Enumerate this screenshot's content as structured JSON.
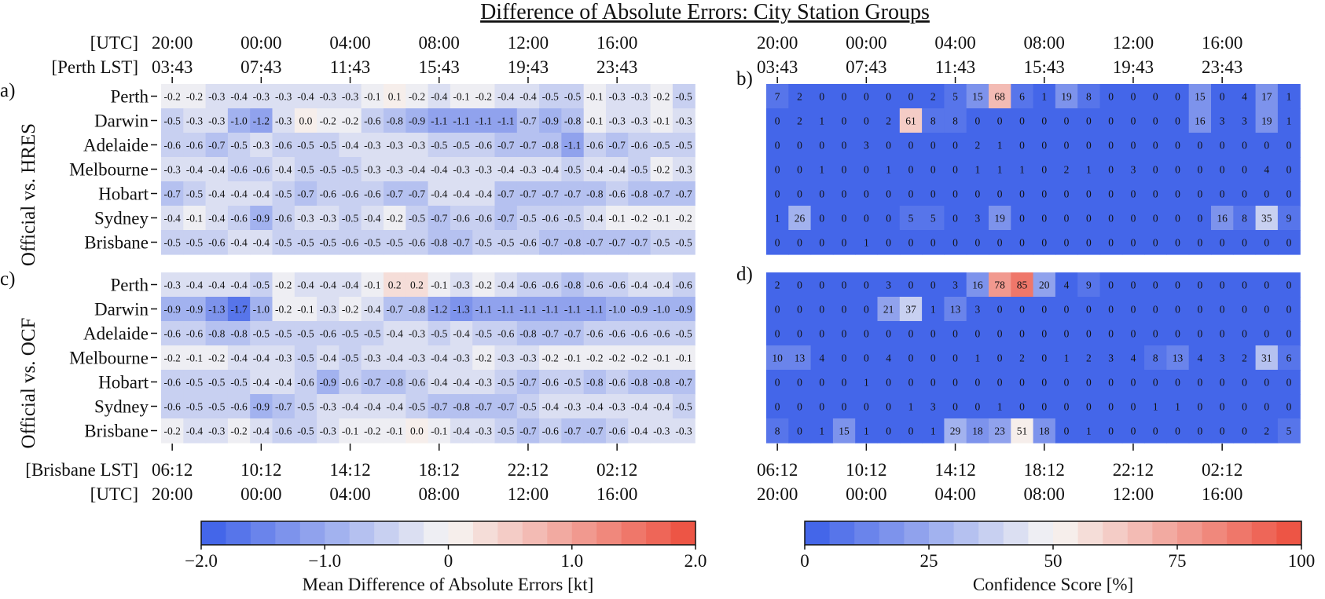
{
  "title": "Difference of Absolute Errors: City Station Groups",
  "top_axis": {
    "label_utc": "[UTC]",
    "label_lst": "[Perth LST]",
    "utc": [
      "20:00",
      "00:00",
      "04:00",
      "08:00",
      "12:00",
      "16:00"
    ],
    "lst": [
      "03:43",
      "07:43",
      "11:43",
      "15:43",
      "19:43",
      "23:43"
    ]
  },
  "bottom_axis": {
    "label_lst": "[Brisbane LST]",
    "label_utc": "[UTC]",
    "lst": [
      "06:12",
      "10:12",
      "14:12",
      "18:12",
      "22:12",
      "02:12"
    ],
    "utc": [
      "20:00",
      "00:00",
      "04:00",
      "08:00",
      "12:00",
      "16:00"
    ]
  },
  "row_group_labels": [
    "Official vs. HRES",
    "Official vs. OCF"
  ],
  "panel_labels": [
    "a)",
    "b)",
    "c)",
    "d)"
  ],
  "colorbars": [
    {
      "label": "Mean Difference of Absolute Errors [kt]",
      "ticks": [
        "−2.0",
        "−1.0",
        "0",
        "1.0",
        "2.0"
      ],
      "min": -2,
      "max": 2,
      "levels": 20
    },
    {
      "label": "Confidence Score [%]",
      "ticks": [
        "0",
        "25",
        "50",
        "75",
        "100"
      ],
      "min": 0,
      "max": 100,
      "levels": 20
    }
  ],
  "colors": {
    "low": "#3b5ee8",
    "mid": "#f7f6f4",
    "high": "#ec4d3c"
  },
  "chart_data": [
    {
      "type": "heatmap",
      "panel": "a)",
      "group": "Official vs. HRES",
      "rows": [
        "Perth",
        "Darwin",
        "Adelaide",
        "Melbourne",
        "Hobart",
        "Sydney",
        "Brisbane"
      ],
      "values": [
        [
          "-0.2",
          "-0.2",
          "-0.3",
          "-0.4",
          "-0.3",
          "-0.3",
          "-0.4",
          "-0.3",
          "-0.3",
          "-0.1",
          "0.1",
          "-0.2",
          "-0.4",
          "-0.1",
          "-0.2",
          "-0.4",
          "-0.4",
          "-0.5",
          "-0.5",
          "-0.1",
          "-0.3",
          "-0.3",
          "-0.2",
          "-0.5"
        ],
        [
          "-0.5",
          "-0.3",
          "-0.3",
          "-1.0",
          "-1.2",
          "-0.3",
          "0.0",
          "-0.2",
          "-0.2",
          "-0.6",
          "-0.8",
          "-0.9",
          "-1.1",
          "-1.1",
          "-1.1",
          "-1.1",
          "-0.7",
          "-0.9",
          "-0.8",
          "-0.1",
          "-0.3",
          "-0.3",
          "-0.1",
          "-0.3"
        ],
        [
          "-0.6",
          "-0.6",
          "-0.7",
          "-0.5",
          "-0.3",
          "-0.6",
          "-0.5",
          "-0.5",
          "-0.4",
          "-0.3",
          "-0.3",
          "-0.3",
          "-0.5",
          "-0.5",
          "-0.6",
          "-0.7",
          "-0.7",
          "-0.8",
          "-1.1",
          "-0.6",
          "-0.7",
          "-0.6",
          "-0.5",
          "-0.5"
        ],
        [
          "-0.3",
          "-0.4",
          "-0.4",
          "-0.6",
          "-0.6",
          "-0.4",
          "-0.5",
          "-0.5",
          "-0.5",
          "-0.3",
          "-0.3",
          "-0.4",
          "-0.4",
          "-0.3",
          "-0.3",
          "-0.4",
          "-0.3",
          "-0.4",
          "-0.5",
          "-0.4",
          "-0.4",
          "-0.5",
          "-0.2",
          "-0.3"
        ],
        [
          "-0.7",
          "-0.5",
          "-0.4",
          "-0.4",
          "-0.4",
          "-0.5",
          "-0.7",
          "-0.6",
          "-0.6",
          "-0.6",
          "-0.7",
          "-0.7",
          "-0.4",
          "-0.4",
          "-0.4",
          "-0.7",
          "-0.7",
          "-0.7",
          "-0.7",
          "-0.8",
          "-0.6",
          "-0.8",
          "-0.7",
          "-0.7"
        ],
        [
          "-0.4",
          "-0.1",
          "-0.4",
          "-0.6",
          "-0.9",
          "-0.6",
          "-0.3",
          "-0.3",
          "-0.5",
          "-0.4",
          "-0.2",
          "-0.5",
          "-0.7",
          "-0.6",
          "-0.6",
          "-0.7",
          "-0.5",
          "-0.6",
          "-0.5",
          "-0.4",
          "-0.1",
          "-0.2",
          "-0.1",
          "-0.2"
        ],
        [
          "-0.5",
          "-0.5",
          "-0.6",
          "-0.4",
          "-0.4",
          "-0.5",
          "-0.5",
          "-0.5",
          "-0.6",
          "-0.5",
          "-0.5",
          "-0.6",
          "-0.8",
          "-0.7",
          "-0.5",
          "-0.5",
          "-0.6",
          "-0.7",
          "-0.8",
          "-0.7",
          "-0.7",
          "-0.7",
          "-0.5",
          "-0.5"
        ]
      ]
    },
    {
      "type": "heatmap",
      "panel": "b)",
      "group": "Official vs. HRES",
      "rows": [
        "Perth",
        "Darwin",
        "Adelaide",
        "Melbourne",
        "Hobart",
        "Sydney",
        "Brisbane"
      ],
      "values": [
        [
          "7",
          "2",
          "0",
          "0",
          "0",
          "0",
          "0",
          "2",
          "5",
          "15",
          "68",
          "6",
          "1",
          "19",
          "8",
          "0",
          "0",
          "0",
          "0",
          "15",
          "0",
          "4",
          "17",
          "1"
        ],
        [
          "0",
          "2",
          "1",
          "0",
          "0",
          "2",
          "61",
          "8",
          "8",
          "0",
          "0",
          "0",
          "0",
          "0",
          "0",
          "0",
          "0",
          "0",
          "0",
          "16",
          "3",
          "3",
          "19",
          "1"
        ],
        [
          "0",
          "0",
          "0",
          "0",
          "3",
          "0",
          "0",
          "0",
          "0",
          "2",
          "1",
          "0",
          "0",
          "0",
          "0",
          "0",
          "0",
          "0",
          "0",
          "0",
          "0",
          "0",
          "0",
          "0"
        ],
        [
          "0",
          "0",
          "1",
          "0",
          "0",
          "1",
          "0",
          "0",
          "0",
          "1",
          "1",
          "1",
          "0",
          "2",
          "1",
          "0",
          "3",
          "0",
          "0",
          "0",
          "0",
          "0",
          "4",
          "0"
        ],
        [
          "0",
          "0",
          "0",
          "0",
          "0",
          "0",
          "0",
          "0",
          "0",
          "0",
          "0",
          "0",
          "0",
          "0",
          "0",
          "0",
          "0",
          "0",
          "0",
          "0",
          "0",
          "0",
          "0",
          "0"
        ],
        [
          "1",
          "26",
          "0",
          "0",
          "0",
          "0",
          "5",
          "5",
          "0",
          "3",
          "19",
          "0",
          "0",
          "0",
          "0",
          "0",
          "0",
          "0",
          "0",
          "0",
          "16",
          "8",
          "35",
          "9"
        ],
        [
          "0",
          "0",
          "0",
          "0",
          "1",
          "0",
          "0",
          "0",
          "0",
          "0",
          "0",
          "0",
          "0",
          "0",
          "0",
          "0",
          "0",
          "0",
          "0",
          "0",
          "0",
          "0",
          "0",
          "0"
        ]
      ]
    },
    {
      "type": "heatmap",
      "panel": "c)",
      "group": "Official vs. OCF",
      "rows": [
        "Perth",
        "Darwin",
        "Adelaide",
        "Melbourne",
        "Hobart",
        "Sydney",
        "Brisbane"
      ],
      "values": [
        [
          "-0.3",
          "-0.4",
          "-0.4",
          "-0.4",
          "-0.5",
          "-0.2",
          "-0.4",
          "-0.4",
          "-0.4",
          "-0.1",
          "0.2",
          "0.2",
          "-0.1",
          "-0.3",
          "-0.2",
          "-0.4",
          "-0.6",
          "-0.6",
          "-0.8",
          "-0.6",
          "-0.6",
          "-0.4",
          "-0.4",
          "-0.6"
        ],
        [
          "-0.9",
          "-0.9",
          "-1.3",
          "-1.7",
          "-1.0",
          "-0.2",
          "-0.1",
          "-0.3",
          "-0.2",
          "-0.4",
          "-0.7",
          "-0.8",
          "-1.2",
          "-1.3",
          "-1.1",
          "-1.1",
          "-1.1",
          "-1.1",
          "-1.1",
          "-1.1",
          "-1.0",
          "-0.9",
          "-1.0",
          "-0.9"
        ],
        [
          "-0.6",
          "-0.6",
          "-0.8",
          "-0.8",
          "-0.5",
          "-0.5",
          "-0.5",
          "-0.6",
          "-0.5",
          "-0.5",
          "-0.4",
          "-0.3",
          "-0.5",
          "-0.4",
          "-0.5",
          "-0.6",
          "-0.8",
          "-0.7",
          "-0.7",
          "-0.6",
          "-0.6",
          "-0.6",
          "-0.6",
          "-0.5"
        ],
        [
          "-0.2",
          "-0.1",
          "-0.2",
          "-0.4",
          "-0.4",
          "-0.3",
          "-0.5",
          "-0.4",
          "-0.5",
          "-0.3",
          "-0.4",
          "-0.3",
          "-0.4",
          "-0.3",
          "-0.2",
          "-0.3",
          "-0.3",
          "-0.2",
          "-0.1",
          "-0.2",
          "-0.2",
          "-0.2",
          "-0.1",
          "-0.1"
        ],
        [
          "-0.6",
          "-0.5",
          "-0.5",
          "-0.5",
          "-0.4",
          "-0.4",
          "-0.6",
          "-0.9",
          "-0.6",
          "-0.7",
          "-0.8",
          "-0.6",
          "-0.4",
          "-0.4",
          "-0.3",
          "-0.5",
          "-0.7",
          "-0.6",
          "-0.5",
          "-0.8",
          "-0.6",
          "-0.8",
          "-0.8",
          "-0.7"
        ],
        [
          "-0.6",
          "-0.5",
          "-0.5",
          "-0.6",
          "-0.9",
          "-0.7",
          "-0.5",
          "-0.3",
          "-0.4",
          "-0.4",
          "-0.4",
          "-0.5",
          "-0.7",
          "-0.8",
          "-0.7",
          "-0.7",
          "-0.5",
          "-0.4",
          "-0.3",
          "-0.4",
          "-0.3",
          "-0.4",
          "-0.4",
          "-0.5"
        ],
        [
          "-0.2",
          "-0.4",
          "-0.3",
          "-0.2",
          "-0.4",
          "-0.6",
          "-0.5",
          "-0.3",
          "-0.1",
          "-0.2",
          "-0.1",
          "0.0",
          "-0.1",
          "-0.4",
          "-0.3",
          "-0.5",
          "-0.7",
          "-0.6",
          "-0.7",
          "-0.7",
          "-0.6",
          "-0.4",
          "-0.3",
          "-0.3"
        ]
      ]
    },
    {
      "type": "heatmap",
      "panel": "d)",
      "group": "Official vs. OCF",
      "rows": [
        "Perth",
        "Darwin",
        "Adelaide",
        "Melbourne",
        "Hobart",
        "Sydney",
        "Brisbane"
      ],
      "values": [
        [
          "2",
          "0",
          "0",
          "0",
          "0",
          "3",
          "0",
          "0",
          "3",
          "16",
          "78",
          "85",
          "20",
          "4",
          "9",
          "0",
          "0",
          "0",
          "0",
          "0",
          "0",
          "0",
          "0",
          "0"
        ],
        [
          "0",
          "0",
          "0",
          "0",
          "0",
          "21",
          "37",
          "1",
          "13",
          "3",
          "0",
          "0",
          "0",
          "0",
          "0",
          "0",
          "0",
          "0",
          "0",
          "0",
          "0",
          "0",
          "0",
          "0"
        ],
        [
          "0",
          "0",
          "0",
          "0",
          "0",
          "0",
          "0",
          "0",
          "0",
          "0",
          "0",
          "0",
          "0",
          "0",
          "0",
          "0",
          "0",
          "0",
          "0",
          "0",
          "0",
          "0",
          "0",
          "0"
        ],
        [
          "10",
          "13",
          "4",
          "0",
          "0",
          "4",
          "0",
          "0",
          "0",
          "1",
          "0",
          "2",
          "0",
          "1",
          "2",
          "3",
          "4",
          "8",
          "13",
          "4",
          "3",
          "2",
          "31",
          "6"
        ],
        [
          "0",
          "0",
          "0",
          "0",
          "1",
          "0",
          "0",
          "0",
          "0",
          "0",
          "0",
          "0",
          "0",
          "0",
          "0",
          "0",
          "0",
          "0",
          "0",
          "0",
          "0",
          "0",
          "0",
          "0"
        ],
        [
          "0",
          "0",
          "0",
          "0",
          "0",
          "0",
          "1",
          "3",
          "0",
          "0",
          "1",
          "0",
          "0",
          "0",
          "0",
          "0",
          "0",
          "1",
          "1",
          "0",
          "0",
          "0",
          "0",
          "0"
        ],
        [
          "8",
          "0",
          "1",
          "15",
          "1",
          "0",
          "0",
          "1",
          "29",
          "18",
          "23",
          "51",
          "18",
          "0",
          "1",
          "0",
          "0",
          "0",
          "0",
          "0",
          "0",
          "0",
          "2",
          "5"
        ]
      ]
    }
  ]
}
